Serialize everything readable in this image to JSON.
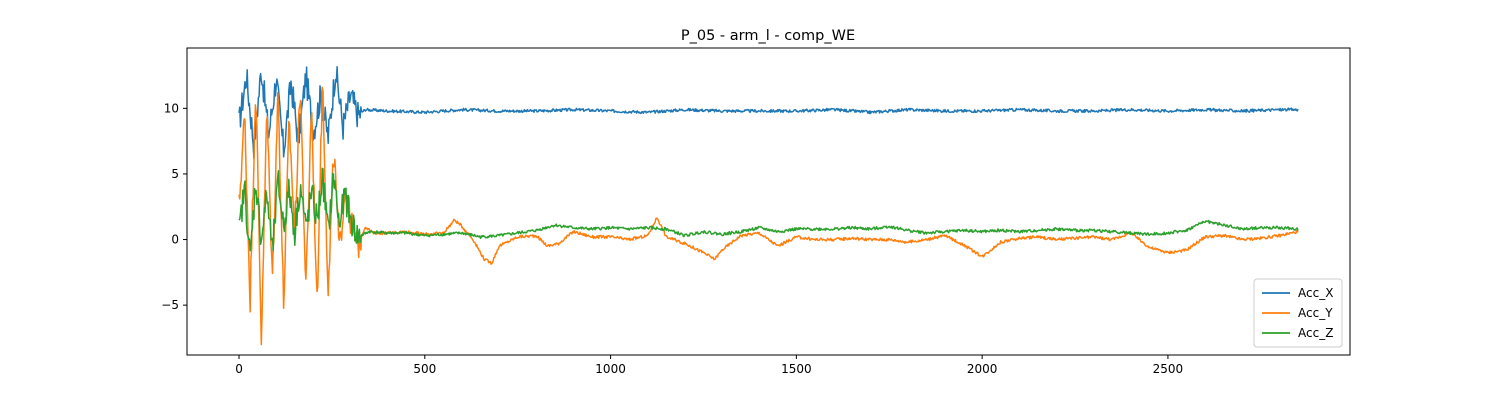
{
  "chart_data": {
    "type": "line",
    "title": "P_05 - arm_l - comp_WE",
    "xlabel": "",
    "ylabel": "",
    "xlim": [
      -140,
      2990
    ],
    "ylim": [
      -8.8,
      14.6
    ],
    "xticks": [
      0,
      500,
      1000,
      1500,
      2000,
      2500
    ],
    "yticks": [
      -5,
      0,
      5,
      10
    ],
    "grid": false,
    "legend_position": "lower-right",
    "x_range": [
      0,
      2850
    ],
    "series": [
      {
        "name": "Acc_X",
        "color": "#1f77b4",
        "x": [
          0,
          20,
          40,
          60,
          80,
          100,
          120,
          140,
          160,
          180,
          200,
          220,
          240,
          260,
          280,
          300,
          320,
          340,
          400,
          500,
          600,
          700,
          800,
          900,
          1000,
          1100,
          1200,
          1300,
          1400,
          1500,
          1600,
          1700,
          1800,
          1900,
          2000,
          2100,
          2200,
          2300,
          2400,
          2500,
          2600,
          2700,
          2800,
          2850
        ],
        "values": [
          8.8,
          12.5,
          7.2,
          13.0,
          8.0,
          12.3,
          6.8,
          12.0,
          7.5,
          12.5,
          8.2,
          11.0,
          7.8,
          13.0,
          8.6,
          11.0,
          9.5,
          9.9,
          9.8,
          9.7,
          9.9,
          9.8,
          9.8,
          9.9,
          9.8,
          9.7,
          9.9,
          9.8,
          9.8,
          9.8,
          9.9,
          9.7,
          9.9,
          9.8,
          9.8,
          9.9,
          9.8,
          9.8,
          9.9,
          9.8,
          9.9,
          9.8,
          9.9,
          9.9
        ]
      },
      {
        "name": "Acc_Y",
        "color": "#ff7f0e",
        "x": [
          0,
          15,
          30,
          45,
          60,
          75,
          90,
          105,
          120,
          135,
          150,
          165,
          180,
          195,
          210,
          225,
          240,
          255,
          270,
          285,
          300,
          320,
          340,
          360,
          400,
          450,
          500,
          550,
          580,
          600,
          630,
          660,
          680,
          700,
          750,
          800,
          830,
          860,
          900,
          950,
          1000,
          1050,
          1100,
          1125,
          1150,
          1200,
          1250,
          1280,
          1300,
          1350,
          1400,
          1450,
          1500,
          1550,
          1600,
          1650,
          1700,
          1750,
          1800,
          1850,
          1900,
          1950,
          2000,
          2050,
          2100,
          2150,
          2200,
          2250,
          2300,
          2350,
          2400,
          2450,
          2500,
          2550,
          2600,
          2650,
          2700,
          2750,
          2800,
          2850
        ],
        "values": [
          2.5,
          9.5,
          -4.5,
          12.0,
          -7.5,
          10.0,
          -3.0,
          11.5,
          -5.0,
          9.0,
          0.5,
          12.0,
          -4.0,
          10.5,
          -5.0,
          12.5,
          -4.5,
          7.0,
          -1.0,
          4.0,
          1.5,
          -0.5,
          1.0,
          0.5,
          0.5,
          0.6,
          0.4,
          0.5,
          1.5,
          1.0,
          0.0,
          -1.5,
          -1.8,
          -0.5,
          0.2,
          0.3,
          -0.5,
          -0.3,
          0.6,
          0.2,
          0.2,
          0.0,
          0.3,
          1.7,
          0.2,
          -0.3,
          -1.0,
          -1.5,
          -0.8,
          0.3,
          0.5,
          -0.5,
          0.2,
          0.0,
          0.0,
          0.1,
          0.0,
          0.0,
          -0.2,
          0.0,
          0.3,
          -0.4,
          -1.3,
          -0.2,
          0.1,
          0.2,
          0.0,
          0.1,
          0.2,
          0.0,
          0.5,
          -0.6,
          -1.0,
          -0.8,
          0.2,
          0.3,
          0.0,
          0.1,
          0.3,
          0.6
        ]
      },
      {
        "name": "Acc_Z",
        "color": "#2ca02c",
        "x": [
          0,
          15,
          30,
          45,
          60,
          75,
          90,
          105,
          120,
          135,
          150,
          165,
          180,
          195,
          210,
          225,
          240,
          255,
          270,
          285,
          300,
          320,
          350,
          400,
          450,
          500,
          550,
          600,
          650,
          700,
          750,
          800,
          850,
          900,
          950,
          1000,
          1050,
          1100,
          1150,
          1200,
          1250,
          1300,
          1350,
          1400,
          1450,
          1500,
          1550,
          1600,
          1650,
          1700,
          1750,
          1800,
          1850,
          1900,
          1950,
          2000,
          2050,
          2100,
          2150,
          2200,
          2250,
          2300,
          2350,
          2400,
          2450,
          2500,
          2550,
          2600,
          2650,
          2700,
          2750,
          2800,
          2850
        ],
        "values": [
          0.5,
          4.0,
          -1.5,
          4.5,
          0.0,
          3.5,
          -1.0,
          4.5,
          1.0,
          3.8,
          0.5,
          4.2,
          0.8,
          3.5,
          1.5,
          4.8,
          0.5,
          5.0,
          1.0,
          3.5,
          1.5,
          0.2,
          0.6,
          0.5,
          0.5,
          0.3,
          0.4,
          0.5,
          0.2,
          0.3,
          0.5,
          0.7,
          1.1,
          0.9,
          0.8,
          0.9,
          0.8,
          0.9,
          0.8,
          0.3,
          0.6,
          0.4,
          0.6,
          0.9,
          0.6,
          0.8,
          0.8,
          0.8,
          0.9,
          0.8,
          1.0,
          0.7,
          0.5,
          0.6,
          0.7,
          0.6,
          0.7,
          0.6,
          0.7,
          0.8,
          0.7,
          0.7,
          0.6,
          0.5,
          0.4,
          0.5,
          0.7,
          1.4,
          1.1,
          0.8,
          0.9,
          0.9,
          0.8
        ]
      }
    ]
  }
}
